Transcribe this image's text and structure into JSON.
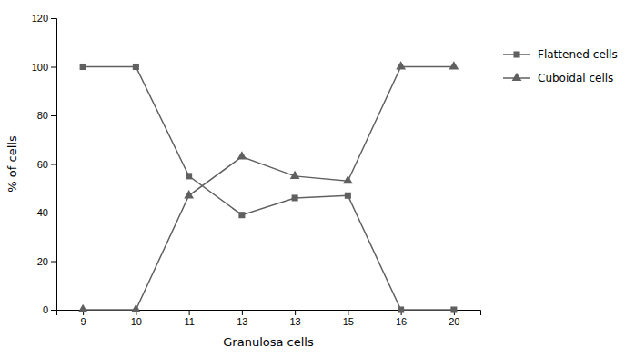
{
  "chart_data": {
    "type": "line",
    "categories": [
      "9",
      "10",
      "11",
      "13",
      "13",
      "15",
      "16",
      "20"
    ],
    "series": [
      {
        "name": "Flattened cells",
        "color": "#606060",
        "marker": "square",
        "values": [
          100,
          100,
          55,
          39,
          46,
          47,
          0,
          0
        ]
      },
      {
        "name": "Cuboidal cells",
        "color": "#606060",
        "marker": "triangle",
        "values": [
          0,
          0,
          47,
          63,
          55,
          53,
          100,
          100
        ]
      }
    ],
    "x_label": "Granulosa cells",
    "y_label": "% of cells",
    "ylim": [
      0,
      120
    ],
    "yticks": [
      0,
      20,
      40,
      60,
      80,
      100,
      120
    ],
    "grid": false,
    "legend": "right"
  }
}
